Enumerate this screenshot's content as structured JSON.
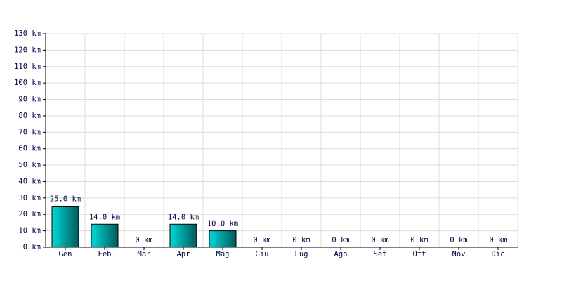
{
  "chart_data": {
    "type": "bar",
    "categories": [
      "Gen",
      "Feb",
      "Mar",
      "Apr",
      "Mag",
      "Giu",
      "Lug",
      "Ago",
      "Set",
      "Ott",
      "Nov",
      "Dic"
    ],
    "values": [
      25,
      14,
      0,
      14,
      10,
      0,
      0,
      0,
      0,
      0,
      0,
      0
    ],
    "value_labels": [
      "25.0 km",
      "14.0 km",
      "0 km",
      "14.0 km",
      "10.0 km",
      "0 km",
      "0 km",
      "0 km",
      "0 km",
      "0 km",
      "0 km",
      "0 km"
    ],
    "color": "#00d8d8",
    "ylim": [
      0,
      130
    ],
    "yticks": [
      {
        "value": 0,
        "label": "0 km"
      },
      {
        "value": 10,
        "label": "10 km"
      },
      {
        "value": 20,
        "label": "20 km"
      },
      {
        "value": 30,
        "label": "30 km"
      },
      {
        "value": 40,
        "label": "40 km"
      },
      {
        "value": 50,
        "label": "50 km"
      },
      {
        "value": 60,
        "label": "60 km"
      },
      {
        "value": 70,
        "label": "70 km"
      },
      {
        "value": 80,
        "label": "80 km"
      },
      {
        "value": 90,
        "label": "90 km"
      },
      {
        "value": 100,
        "label": "100 km"
      },
      {
        "value": 110,
        "label": "110 km"
      },
      {
        "value": 120,
        "label": "120 km"
      },
      {
        "value": 130,
        "label": "130 km"
      }
    ],
    "grid": true
  }
}
